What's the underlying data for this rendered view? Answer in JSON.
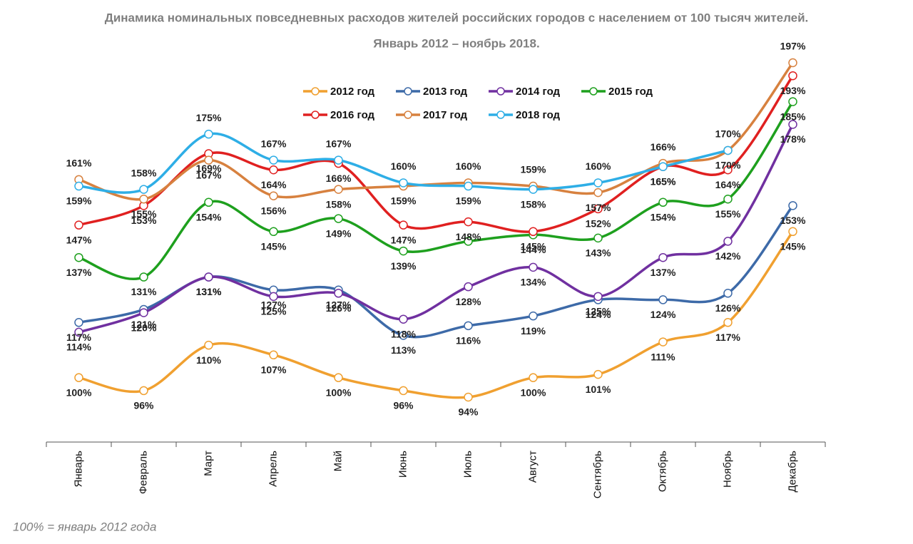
{
  "chart_data": {
    "type": "line",
    "title": "Динамика номинальных повседневных расходов жителей российских городов с населением от 100 тысяч жителей.",
    "subtitle": "Январь 2012 – ноябрь 2018.",
    "note": "100% = январь 2012 года",
    "categories": [
      "Январь",
      "Февраль",
      "Март",
      "Апрель",
      "Май",
      "Июнь",
      "Июль",
      "Август",
      "Сентябрь",
      "Октябрь",
      "Ноябрь",
      "Декабрь"
    ],
    "series": [
      {
        "name": "2012 год",
        "color": "#f0a030",
        "values": [
          100,
          96,
          110,
          107,
          100,
          96,
          94,
          100,
          101,
          111,
          117,
          145
        ],
        "value_labels": [
          "100%",
          "96%",
          "110%",
          "107%",
          "100%",
          "96%",
          "94%",
          "100%",
          "101%",
          "111%",
          "117%",
          "145%"
        ]
      },
      {
        "name": "2013 год",
        "color": "#3d6aa8",
        "values": [
          117,
          121,
          131,
          127,
          127,
          113,
          116,
          119,
          124,
          124,
          126,
          153
        ],
        "value_labels": [
          "117%",
          "121%",
          "131%",
          "127%",
          "127%",
          "113%",
          "116%",
          "119%",
          "124%",
          "124%",
          "126%",
          "153%"
        ]
      },
      {
        "name": "2014 год",
        "color": "#7030a0",
        "values": [
          114,
          120,
          131,
          125,
          126,
          118,
          128,
          134,
          125,
          137,
          142,
          178
        ],
        "value_labels": [
          "114%",
          "120%",
          "131%",
          "125%",
          "126%",
          "118%",
          "128%",
          "134%",
          "125%",
          "137%",
          "142%",
          "178%"
        ]
      },
      {
        "name": "2015 год",
        "color": "#1ea01e",
        "values": [
          137,
          131,
          154,
          145,
          149,
          139,
          142,
          144,
          143,
          154,
          155,
          185
        ],
        "value_labels": [
          "137%",
          "131%",
          "154%",
          "145%",
          "149%",
          "139%",
          null,
          "144%",
          "143%",
          "154%",
          "155%",
          "185%"
        ]
      },
      {
        "name": "2016 год",
        "color": "#e02020",
        "values": [
          147,
          153,
          169,
          164,
          166,
          147,
          148,
          145,
          152,
          165,
          164,
          193
        ],
        "value_labels": [
          "147%",
          "153%",
          "169%",
          "164%",
          "166%",
          "147%",
          "148%",
          "145%",
          "152%",
          "165%",
          "164%",
          "193%"
        ]
      },
      {
        "name": "2017 год",
        "color": "#d7813f",
        "values": [
          161,
          155,
          167,
          156,
          158,
          159,
          160,
          159,
          157,
          166,
          170,
          197
        ],
        "value_labels": [
          "161%",
          "155%",
          "167%",
          "156%",
          "158%",
          "159%",
          "160%",
          "159%",
          "157%",
          "166%",
          "170%",
          "197%"
        ]
      },
      {
        "name": "2018 год",
        "color": "#2eaee6",
        "values": [
          159,
          158,
          175,
          167,
          167,
          160,
          159,
          158,
          160,
          165,
          170,
          null
        ],
        "value_labels": [
          "159%",
          "158%",
          "175%",
          "167%",
          "167%",
          "160%",
          "159%",
          "158%",
          "160%",
          "165%",
          "170%",
          null
        ]
      }
    ]
  }
}
